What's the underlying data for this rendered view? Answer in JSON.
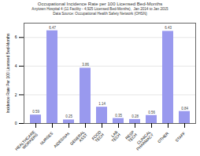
{
  "chart_data": {
    "type": "bar",
    "title": "Occupational Incidence Rate per 100 Licensed Bed-Months",
    "subtitle": [
      "Anytown Hospital 4 (11 Facility - 4,925 Licensed Bed-Months),  Jan 2014 to Jan 2015",
      "Data Source: Occupational Health Safety Network (OHSN)"
    ],
    "ylabel": "Incidence Rate Per 100 Licensed Bed-Months",
    "categories": [
      "HEALTHCARE\nWORKERS",
      "NURSES",
      "AIDES/NAs",
      "GENERAL\nASST",
      "FOOD\nTECH",
      "LAB\nTECH",
      "RESP\nTECH",
      "CLINICAL\nPHARMACY",
      "OTHER",
      "STAFF"
    ],
    "values": [
      0.59,
      6.47,
      0.25,
      3.86,
      1.14,
      0.35,
      0.28,
      0.56,
      6.43,
      0.84
    ],
    "color": "#9999ee",
    "ylim": [
      0,
      7
    ],
    "yticks": [
      0,
      2,
      4,
      6
    ],
    "grid": true,
    "data_labels": true
  }
}
